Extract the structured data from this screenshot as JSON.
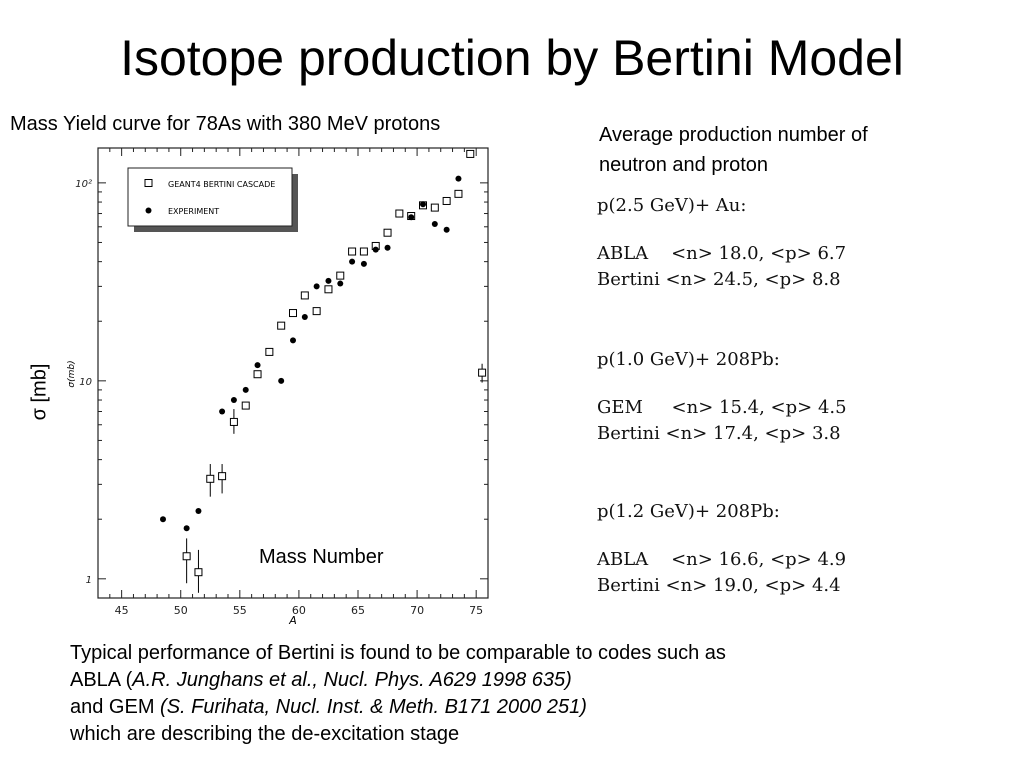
{
  "slide": {
    "title": "Isotope production by Bertini Model",
    "chart_caption": "Mass Yield curve for 78As with 380 MeV protons",
    "sigma_label": "σ [mb]",
    "mass_label": "Mass Number"
  },
  "right_panel": {
    "caption_line1": "Average production number of",
    "caption_line2": "neutron and proton",
    "blocks": [
      {
        "header": "p(2.5 GeV)+ Au:",
        "rows": [
          "ABLA    <n> 18.0, <p> 6.7",
          "Bertini <n> 24.5, <p> 8.8"
        ]
      },
      {
        "header": "p(1.0 GeV)+ 208Pb:",
        "rows": [
          "GEM     <n> 15.4, <p> 4.5",
          "Bertini <n> 17.4, <p> 3.8"
        ]
      },
      {
        "header": "p(1.2 GeV)+ 208Pb:",
        "rows": [
          "ABLA    <n> 16.6, <p> 4.9",
          "Bertini <n> 19.0, <p> 4.4"
        ]
      }
    ]
  },
  "bottom_text": {
    "line1": "Typical performance of Bertini is found to be comparable to codes such as",
    "line2_plain": " ABLA (",
    "line2_italic": "A.R. Junghans et al., Nucl. Phys. A629 1998 635)",
    "line3_plain": "and GEM ",
    "line3_italic": "(S. Furihata, Nucl. Inst. & Meth. B171 2000 251)",
    "line4": "which are describing the de-excitation stage"
  },
  "chart_data": {
    "type": "scatter",
    "xlabel": "A",
    "ylabel": "σ(mb)",
    "xlim": [
      43,
      76
    ],
    "ylim": [
      0.8,
      150
    ],
    "yscale": "log",
    "x_ticks": [
      45,
      50,
      55,
      60,
      65,
      70,
      75
    ],
    "y_ticks": [
      {
        "value": 1,
        "label": "1"
      },
      {
        "value": 10,
        "label": "10"
      },
      {
        "value": 100,
        "label": "10²"
      }
    ],
    "legend": {
      "placement": "top-left",
      "entries": [
        "GEANT4 BERTINI CASCADE",
        "EXPERIMENT"
      ]
    },
    "series": [
      {
        "name": "GEANT4 BERTINI CASCADE",
        "marker": "open-square",
        "points": [
          {
            "x": 50.5,
            "y": 1.3,
            "lo": 0.95,
            "hi": 1.6
          },
          {
            "x": 51.5,
            "y": 1.08,
            "lo": 0.85,
            "hi": 1.4
          },
          {
            "x": 52.5,
            "y": 3.2,
            "lo": 2.6,
            "hi": 3.8
          },
          {
            "x": 53.5,
            "y": 3.3,
            "lo": 2.7,
            "hi": 3.8
          },
          {
            "x": 54.5,
            "y": 6.2,
            "lo": 5.4,
            "hi": 7.2
          },
          {
            "x": 55.5,
            "y": 7.5
          },
          {
            "x": 56.5,
            "y": 10.8
          },
          {
            "x": 57.5,
            "y": 14
          },
          {
            "x": 58.5,
            "y": 19
          },
          {
            "x": 59.5,
            "y": 22
          },
          {
            "x": 60.5,
            "y": 27
          },
          {
            "x": 61.5,
            "y": 22.5
          },
          {
            "x": 62.5,
            "y": 29
          },
          {
            "x": 63.5,
            "y": 34
          },
          {
            "x": 64.5,
            "y": 45
          },
          {
            "x": 65.5,
            "y": 45
          },
          {
            "x": 66.5,
            "y": 48
          },
          {
            "x": 67.5,
            "y": 56
          },
          {
            "x": 68.5,
            "y": 70
          },
          {
            "x": 69.5,
            "y": 68
          },
          {
            "x": 70.5,
            "y": 77
          },
          {
            "x": 71.5,
            "y": 75
          },
          {
            "x": 72.5,
            "y": 81
          },
          {
            "x": 73.5,
            "y": 88
          },
          {
            "x": 74.5,
            "y": 140
          },
          {
            "x": 75.5,
            "y": 11,
            "lo": 9.8,
            "hi": 12.2
          }
        ]
      },
      {
        "name": "EXPERIMENT",
        "marker": "filled-circle",
        "points": [
          {
            "x": 48.5,
            "y": 2.0
          },
          {
            "x": 50.5,
            "y": 1.8
          },
          {
            "x": 51.5,
            "y": 2.2
          },
          {
            "x": 53.5,
            "y": 7.0
          },
          {
            "x": 54.5,
            "y": 8.0
          },
          {
            "x": 55.5,
            "y": 9.0
          },
          {
            "x": 56.5,
            "y": 12
          },
          {
            "x": 58.5,
            "y": 10
          },
          {
            "x": 59.5,
            "y": 16
          },
          {
            "x": 60.5,
            "y": 21
          },
          {
            "x": 61.5,
            "y": 30
          },
          {
            "x": 62.5,
            "y": 32
          },
          {
            "x": 63.5,
            "y": 31
          },
          {
            "x": 64.5,
            "y": 40
          },
          {
            "x": 65.5,
            "y": 39
          },
          {
            "x": 66.5,
            "y": 46
          },
          {
            "x": 67.5,
            "y": 47
          },
          {
            "x": 69.5,
            "y": 67
          },
          {
            "x": 70.5,
            "y": 78
          },
          {
            "x": 71.5,
            "y": 62
          },
          {
            "x": 72.5,
            "y": 58
          },
          {
            "x": 73.5,
            "y": 105
          }
        ]
      }
    ]
  }
}
